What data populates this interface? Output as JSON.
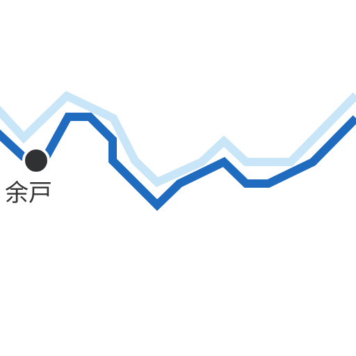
{
  "map": {
    "routes": [
      {
        "name": "",
        "color": "#c8e6f7",
        "style": "light-blue-line"
      },
      {
        "name": "",
        "color": "#1f6bbf",
        "style": "dark-blue-line"
      }
    ],
    "station": {
      "label": "余戸",
      "marker_color": "#2f3133",
      "marker_outline": "#ffffff"
    }
  }
}
